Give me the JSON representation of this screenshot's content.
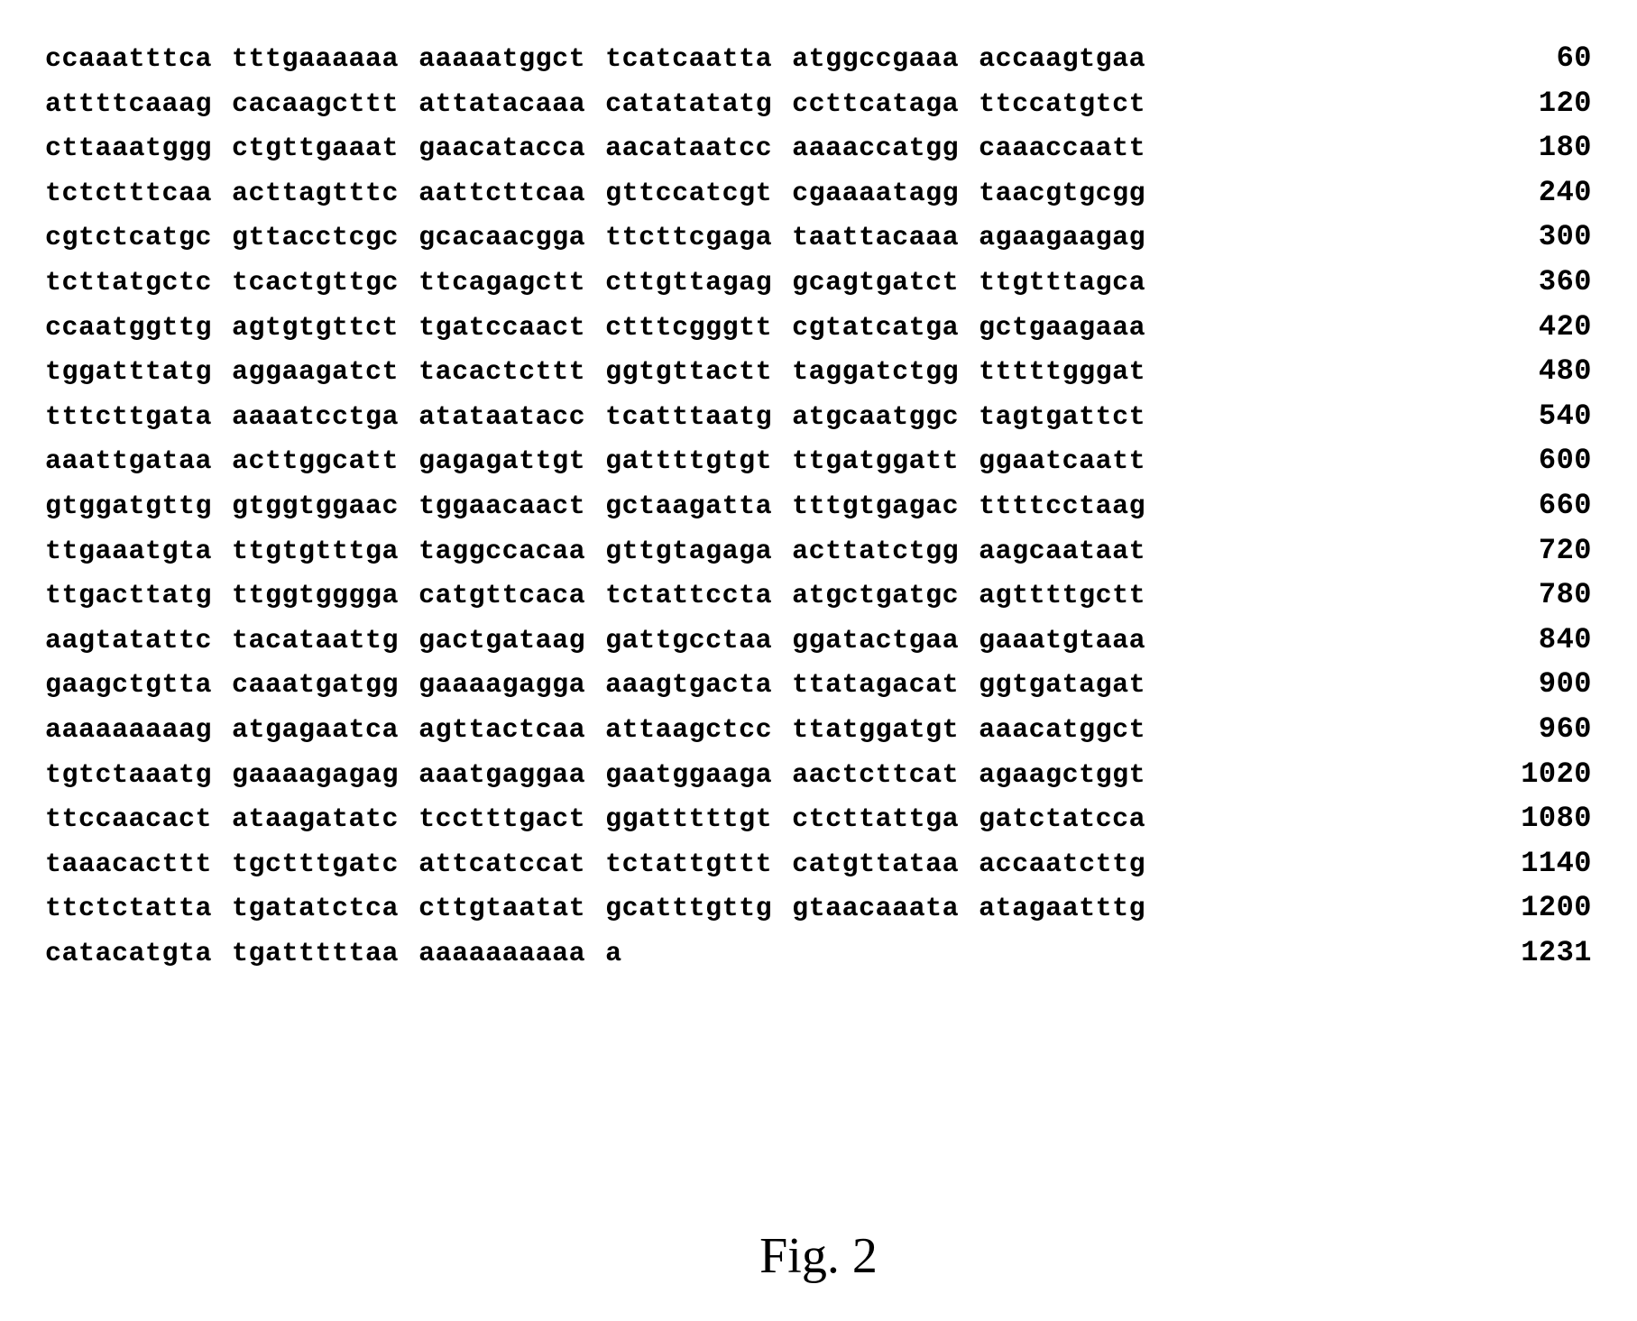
{
  "sequence": {
    "rows": [
      {
        "groups": [
          "ccaaatttca",
          "tttgaaaaaa",
          "aaaaatggct",
          "tcatcaatta",
          "atggccgaaa",
          "accaagtgaa"
        ],
        "position": "60"
      },
      {
        "groups": [
          "attttcaaag",
          "cacaagcttt",
          "attatacaaa",
          "catatatatg",
          "ccttcataga",
          "ttccatgtct"
        ],
        "position": "120"
      },
      {
        "groups": [
          "cttaaatggg",
          "ctgttgaaat",
          "gaacatacca",
          "aacataatcc",
          "aaaaccatgg",
          "caaaccaatt"
        ],
        "position": "180"
      },
      {
        "groups": [
          "tctctttcaa",
          "acttagtttc",
          "aattcttcaa",
          "gttccatcgt",
          "cgaaaatagg",
          "taacgtgcgg"
        ],
        "position": "240"
      },
      {
        "groups": [
          "cgtctcatgc",
          "gttacctcgc",
          "gcacaacgga",
          "ttcttcgaga",
          "taattacaaa",
          "agaagaagag"
        ],
        "position": "300"
      },
      {
        "groups": [
          "tcttatgctc",
          "tcactgttgc",
          "ttcagagctt",
          "cttgttagag",
          "gcagtgatct",
          "ttgtttagca"
        ],
        "position": "360"
      },
      {
        "groups": [
          "ccaatggttg",
          "agtgtgttct",
          "tgatccaact",
          "ctttcgggtt",
          "cgtatcatga",
          "gctgaagaaa"
        ],
        "position": "420"
      },
      {
        "groups": [
          "tggatttatg",
          "aggaagatct",
          "tacactcttt",
          "ggtgttactt",
          "taggatctgg",
          "tttttgggat"
        ],
        "position": "480"
      },
      {
        "groups": [
          "tttcttgata",
          "aaaatcctga",
          "atataatacc",
          "tcatttaatg",
          "atgcaatggc",
          "tagtgattct"
        ],
        "position": "540"
      },
      {
        "groups": [
          "aaattgataa",
          "acttggcatt",
          "gagagattgt",
          "gattttgtgt",
          "ttgatggatt",
          "ggaatcaatt"
        ],
        "position": "600"
      },
      {
        "groups": [
          "gtggatgttg",
          "gtggtggaac",
          "tggaacaact",
          "gctaagatta",
          "tttgtgagac",
          "ttttcctaag"
        ],
        "position": "660"
      },
      {
        "groups": [
          "ttgaaatgta",
          "ttgtgtttga",
          "taggccacaa",
          "gttgtagaga",
          "acttatctgg",
          "aagcaataat"
        ],
        "position": "720"
      },
      {
        "groups": [
          "ttgacttatg",
          "ttggtgggga",
          "catgttcaca",
          "tctattccta",
          "atgctgatgc",
          "agttttgctt"
        ],
        "position": "780"
      },
      {
        "groups": [
          "aagtatattc",
          "tacataattg",
          "gactgataag",
          "gattgcctaa",
          "ggatactgaa",
          "gaaatgtaaa"
        ],
        "position": "840"
      },
      {
        "groups": [
          "gaagctgtta",
          "caaatgatgg",
          "gaaaagagga",
          "aaagtgacta",
          "ttatagacat",
          "ggtgatagat"
        ],
        "position": "900"
      },
      {
        "groups": [
          "aaaaaaaaag",
          "atgagaatca",
          "agttactcaa",
          "attaagctcc",
          "ttatggatgt",
          "aaacatggct"
        ],
        "position": "960"
      },
      {
        "groups": [
          "tgtctaaatg",
          "gaaaagagag",
          "aaatgaggaa",
          "gaatggaaga",
          "aactcttcat",
          "agaagctggt"
        ],
        "position": "1020"
      },
      {
        "groups": [
          "ttccaacact",
          "ataagatatc",
          "tcctttgact",
          "ggatttttgt",
          "ctcttattga",
          "gatctatcca"
        ],
        "position": "1080"
      },
      {
        "groups": [
          "taaacacttt",
          "tgctttgatc",
          "attcatccat",
          "tctattgttt",
          "catgttataa",
          "accaatcttg"
        ],
        "position": "1140"
      },
      {
        "groups": [
          "ttctctatta",
          "tgatatctca",
          "cttgtaatat",
          "gcatttgttg",
          "gtaacaaata",
          "atagaatttg"
        ],
        "position": "1200"
      },
      {
        "groups": [
          "catacatgta",
          "tgatttttaa",
          "aaaaaaaaaa",
          "a",
          "",
          ""
        ],
        "position": "1231"
      }
    ]
  },
  "figureLabel": "Fig. 2"
}
